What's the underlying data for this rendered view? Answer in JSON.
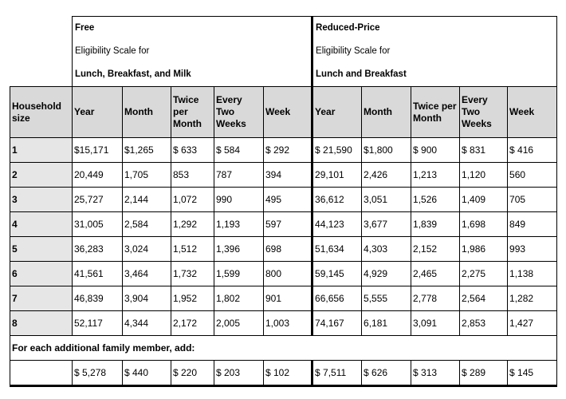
{
  "free": {
    "title": "Free",
    "lines": [
      "Eligibility Scale for",
      "Lunch, Breakfast, and Milk"
    ]
  },
  "reduced": {
    "title": "Reduced-Price",
    "lines": [
      "Eligibility Scale for",
      "Lunch and Breakfast"
    ]
  },
  "columns": [
    "Household size",
    "Year",
    "Month",
    "Twice per Month",
    "Every Two Weeks",
    "Week",
    "Year",
    "Month",
    "Twice per Month",
    "Every Two Weeks",
    "Week"
  ],
  "rows": [
    [
      "1",
      "$15,171",
      "$1,265",
      "$ 633",
      "$ 584",
      "$ 292",
      "$ 21,590",
      "$1,800",
      "$ 900",
      "$ 831",
      "$ 416"
    ],
    [
      "2",
      "20,449",
      "1,705",
      "853",
      "787",
      "394",
      "29,101",
      "2,426",
      "1,213",
      "1,120",
      "560"
    ],
    [
      "3",
      "25,727",
      "2,144",
      "1,072",
      "990",
      "495",
      "36,612",
      "3,051",
      "1,526",
      "1,409",
      "705"
    ],
    [
      "4",
      "31,005",
      "2,584",
      "1,292",
      "1,193",
      "597",
      "44,123",
      "3,677",
      "1,839",
      "1,698",
      "849"
    ],
    [
      "5",
      "36,283",
      "3,024",
      "1,512",
      "1,396",
      "698",
      "51,634",
      "4,303",
      "2,152",
      "1,986",
      "993"
    ],
    [
      "6",
      "41,561",
      "3,464",
      "1,732",
      "1,599",
      "800",
      "59,145",
      "4,929",
      "2,465",
      "2,275",
      "1,138"
    ],
    [
      "7",
      "46,839",
      "3,904",
      "1,952",
      "1,802",
      "901",
      "66,656",
      "5,555",
      "2,778",
      "2,564",
      "1,282"
    ],
    [
      "8",
      "52,117",
      "4,344",
      "2,172",
      "2,005",
      "1,003",
      "74,167",
      "6,181",
      "3,091",
      "2,853",
      "1,427"
    ]
  ],
  "additional": {
    "label": "For each additional family member, add:",
    "values": [
      "$ 5,278",
      "$ 440",
      "$ 220",
      "$ 203",
      "$ 102",
      "$ 7,511",
      "$ 626",
      "$ 313",
      "$ 289",
      "$ 145"
    ]
  }
}
